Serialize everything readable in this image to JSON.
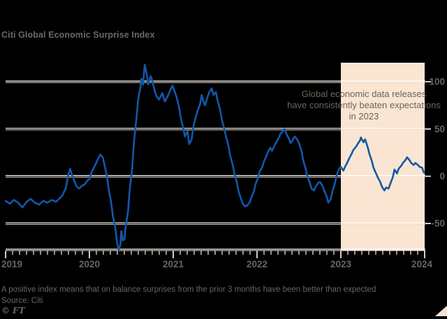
{
  "header": {
    "title": "Citi Global Economic Surprise Index"
  },
  "annotation": {
    "lines": [
      "Global economic data releases",
      "have consistently beaten expectations",
      "in 2023"
    ]
  },
  "footnotes": {
    "note": "A positive index means that on balance surprises from the prior 3 months have been better than expected",
    "source": "Source: Citi",
    "credit": "© FT"
  },
  "colors": {
    "background": "#000000",
    "line": "#1158a8",
    "highlight": "#f9e5d2",
    "grid_white": "#ffffff",
    "grid_peach": "#f2dfce",
    "tick_minor": "#d8ccbd",
    "text": "#6b645e"
  },
  "chart_data": {
    "type": "line",
    "title": "Citi Global Economic Surprise Index",
    "xlabel": "",
    "ylabel": "",
    "x_range": [
      2019,
      2024
    ],
    "ylim": [
      -80,
      120
    ],
    "yticks": [
      100,
      50,
      0,
      -50
    ],
    "ytick_labels": [
      "100",
      "50",
      "0",
      "-50"
    ],
    "xticks": [
      2019,
      2020,
      2021,
      2022,
      2023,
      2024
    ],
    "xtick_labels": [
      "2019",
      "2020",
      "2021",
      "2022",
      "2023",
      "2024"
    ],
    "grid": "horizontal",
    "legend": "none",
    "highlight_region": {
      "x_start": 2023,
      "x_end": 2024,
      "color": "#f9e5d2",
      "label": "Global economic data releases have consistently beaten expectations in 2023"
    },
    "series": [
      {
        "name": "Citi Global Economic Surprise Index",
        "color": "#1158a8",
        "points": [
          [
            2019.0,
            -26
          ],
          [
            2019.05,
            -29
          ],
          [
            2019.1,
            -25
          ],
          [
            2019.15,
            -28
          ],
          [
            2019.2,
            -33
          ],
          [
            2019.25,
            -27
          ],
          [
            2019.3,
            -24
          ],
          [
            2019.35,
            -28
          ],
          [
            2019.4,
            -30
          ],
          [
            2019.45,
            -26
          ],
          [
            2019.5,
            -28
          ],
          [
            2019.55,
            -25
          ],
          [
            2019.6,
            -27
          ],
          [
            2019.65,
            -23
          ],
          [
            2019.68,
            -20
          ],
          [
            2019.72,
            -12
          ],
          [
            2019.75,
            2
          ],
          [
            2019.77,
            8
          ],
          [
            2019.79,
            2
          ],
          [
            2019.82,
            -5
          ],
          [
            2019.85,
            -11
          ],
          [
            2019.88,
            -13
          ],
          [
            2019.91,
            -10
          ],
          [
            2019.94,
            -9
          ],
          [
            2019.97,
            -5
          ],
          [
            2020.0,
            -3
          ],
          [
            2020.03,
            5
          ],
          [
            2020.07,
            12
          ],
          [
            2020.1,
            18
          ],
          [
            2020.13,
            23
          ],
          [
            2020.16,
            20
          ],
          [
            2020.18,
            12
          ],
          [
            2020.21,
            0
          ],
          [
            2020.23,
            -14
          ],
          [
            2020.26,
            -28
          ],
          [
            2020.28,
            -42
          ],
          [
            2020.31,
            -55
          ],
          [
            2020.33,
            -70
          ],
          [
            2020.35,
            -78
          ],
          [
            2020.37,
            -72
          ],
          [
            2020.38,
            -58
          ],
          [
            2020.4,
            -68
          ],
          [
            2020.42,
            -66
          ],
          [
            2020.43,
            -55
          ],
          [
            2020.46,
            -38
          ],
          [
            2020.48,
            -15
          ],
          [
            2020.51,
            8
          ],
          [
            2020.53,
            35
          ],
          [
            2020.56,
            60
          ],
          [
            2020.58,
            80
          ],
          [
            2020.61,
            95
          ],
          [
            2020.62,
            103
          ],
          [
            2020.64,
            97
          ],
          [
            2020.66,
            118
          ],
          [
            2020.68,
            110
          ],
          [
            2020.7,
            97
          ],
          [
            2020.73,
            106
          ],
          [
            2020.75,
            101
          ],
          [
            2020.78,
            90
          ],
          [
            2020.8,
            85
          ],
          [
            2020.83,
            81
          ],
          [
            2020.87,
            88
          ],
          [
            2020.9,
            79
          ],
          [
            2020.93,
            84
          ],
          [
            2020.97,
            92
          ],
          [
            2020.99,
            96
          ],
          [
            2021.02,
            89
          ],
          [
            2021.04,
            84
          ],
          [
            2021.07,
            73
          ],
          [
            2021.09,
            62
          ],
          [
            2021.12,
            51
          ],
          [
            2021.14,
            42
          ],
          [
            2021.17,
            48
          ],
          [
            2021.19,
            34
          ],
          [
            2021.22,
            39
          ],
          [
            2021.24,
            52
          ],
          [
            2021.27,
            63
          ],
          [
            2021.29,
            69
          ],
          [
            2021.32,
            76
          ],
          [
            2021.34,
            86
          ],
          [
            2021.36,
            79
          ],
          [
            2021.38,
            75
          ],
          [
            2021.41,
            84
          ],
          [
            2021.43,
            89
          ],
          [
            2021.46,
            93
          ],
          [
            2021.48,
            86
          ],
          [
            2021.51,
            89
          ],
          [
            2021.53,
            80
          ],
          [
            2021.56,
            70
          ],
          [
            2021.58,
            60
          ],
          [
            2021.61,
            50
          ],
          [
            2021.63,
            42
          ],
          [
            2021.66,
            32
          ],
          [
            2021.68,
            22
          ],
          [
            2021.71,
            12
          ],
          [
            2021.73,
            3
          ],
          [
            2021.76,
            -7
          ],
          [
            2021.78,
            -16
          ],
          [
            2021.81,
            -24
          ],
          [
            2021.83,
            -29
          ],
          [
            2021.86,
            -32
          ],
          [
            2021.88,
            -31
          ],
          [
            2021.91,
            -28
          ],
          [
            2021.93,
            -23
          ],
          [
            2021.96,
            -17
          ],
          [
            2021.98,
            -9
          ],
          [
            2022.01,
            -2
          ],
          [
            2022.03,
            5
          ],
          [
            2022.06,
            9
          ],
          [
            2022.08,
            15
          ],
          [
            2022.11,
            21
          ],
          [
            2022.13,
            26
          ],
          [
            2022.16,
            30
          ],
          [
            2022.18,
            27
          ],
          [
            2022.21,
            33
          ],
          [
            2022.23,
            36
          ],
          [
            2022.26,
            41
          ],
          [
            2022.28,
            45
          ],
          [
            2022.31,
            48
          ],
          [
            2022.33,
            50
          ],
          [
            2022.35,
            45
          ],
          [
            2022.38,
            40
          ],
          [
            2022.4,
            35
          ],
          [
            2022.43,
            39
          ],
          [
            2022.45,
            42
          ],
          [
            2022.48,
            39
          ],
          [
            2022.5,
            35
          ],
          [
            2022.53,
            27
          ],
          [
            2022.55,
            17
          ],
          [
            2022.58,
            8
          ],
          [
            2022.6,
            0
          ],
          [
            2022.63,
            -7
          ],
          [
            2022.65,
            -13
          ],
          [
            2022.68,
            -15
          ],
          [
            2022.7,
            -11
          ],
          [
            2022.73,
            -7
          ],
          [
            2022.75,
            -6
          ],
          [
            2022.78,
            -10
          ],
          [
            2022.8,
            -15
          ],
          [
            2022.83,
            -21
          ],
          [
            2022.85,
            -28
          ],
          [
            2022.88,
            -24
          ],
          [
            2022.9,
            -16
          ],
          [
            2022.93,
            -7
          ],
          [
            2022.95,
            1
          ],
          [
            2022.98,
            8
          ],
          [
            2023.0,
            10
          ],
          [
            2023.03,
            6
          ],
          [
            2023.05,
            10
          ],
          [
            2023.08,
            15
          ],
          [
            2023.1,
            19
          ],
          [
            2023.13,
            24
          ],
          [
            2023.15,
            28
          ],
          [
            2023.18,
            31
          ],
          [
            2023.2,
            34
          ],
          [
            2023.23,
            38
          ],
          [
            2023.24,
            41
          ],
          [
            2023.27,
            36
          ],
          [
            2023.29,
            39
          ],
          [
            2023.32,
            31
          ],
          [
            2023.34,
            24
          ],
          [
            2023.37,
            16
          ],
          [
            2023.39,
            9
          ],
          [
            2023.42,
            3
          ],
          [
            2023.44,
            -1
          ],
          [
            2023.47,
            -6
          ],
          [
            2023.49,
            -11
          ],
          [
            2023.52,
            -15
          ],
          [
            2023.54,
            -12
          ],
          [
            2023.57,
            -13
          ],
          [
            2023.59,
            -8
          ],
          [
            2023.62,
            -1
          ],
          [
            2023.64,
            7
          ],
          [
            2023.67,
            3
          ],
          [
            2023.69,
            8
          ],
          [
            2023.72,
            11
          ],
          [
            2023.74,
            14
          ],
          [
            2023.77,
            17
          ],
          [
            2023.79,
            20
          ],
          [
            2023.82,
            17
          ],
          [
            2023.84,
            14
          ],
          [
            2023.87,
            12
          ],
          [
            2023.89,
            14
          ],
          [
            2023.92,
            12
          ],
          [
            2023.94,
            10
          ],
          [
            2023.97,
            9
          ],
          [
            2023.99,
            4
          ]
        ]
      }
    ]
  }
}
